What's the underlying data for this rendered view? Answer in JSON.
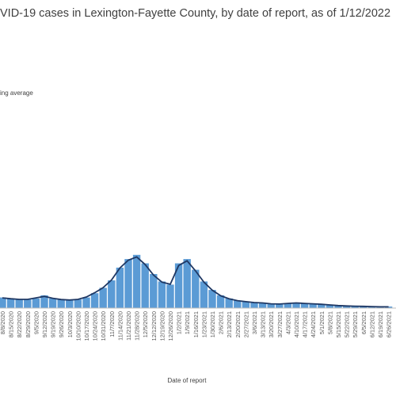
{
  "chart_data": {
    "type": "bar",
    "title": "VID-19 cases in Lexington-Fayette County, by date of report, as of 1/12/2022",
    "xlabel": "Date of report",
    "legend": {
      "line_label": "ing average",
      "position": "top-left"
    },
    "colors": {
      "bars": "#5b9bd5",
      "line": "#1f3864",
      "axis": "#bfbfbf"
    },
    "ylim": [
      0,
      1000
    ],
    "x_ticks": [
      "8/8/2020",
      "8/15/2020",
      "8/22/2020",
      "8/29/2020",
      "9/5/2020",
      "9/12/2020",
      "9/19/2020",
      "9/26/2020",
      "10/3/2020",
      "10/10/2020",
      "10/17/2020",
      "10/24/2020",
      "10/31/2020",
      "11/7/2020",
      "11/14/2020",
      "11/21/2020",
      "11/28/2020",
      "12/5/2020",
      "12/12/2020",
      "12/19/2020",
      "12/26/2020",
      "1/2/2021",
      "1/9/2021",
      "1/16/2021",
      "1/23/2021",
      "1/30/2021",
      "2/6/2021",
      "2/13/2021",
      "2/20/2021",
      "2/27/2021",
      "3/6/2021",
      "3/13/2021",
      "3/20/2021",
      "3/27/2021",
      "4/3/2021",
      "4/10/2021",
      "4/17/2021",
      "4/24/2021",
      "5/1/2021",
      "5/8/2021",
      "5/15/2021",
      "5/22/2021",
      "5/29/2021",
      "6/5/2021",
      "6/12/2021",
      "6/19/2021",
      "6/26/2021"
    ],
    "weekly_values": [
      50,
      45,
      42,
      40,
      45,
      60,
      45,
      40,
      38,
      40,
      50,
      70,
      95,
      130,
      190,
      230,
      250,
      210,
      160,
      125,
      110,
      210,
      230,
      180,
      125,
      85,
      60,
      45,
      35,
      30,
      25,
      25,
      20,
      18,
      22,
      25,
      22,
      20,
      18,
      15,
      12,
      10,
      10,
      8,
      7,
      6,
      7
    ],
    "moving_average": [
      48,
      44,
      41,
      41,
      48,
      55,
      46,
      40,
      38,
      41,
      52,
      72,
      96,
      132,
      188,
      225,
      240,
      205,
      155,
      122,
      112,
      200,
      222,
      175,
      122,
      84,
      58,
      44,
      35,
      30,
      26,
      24,
      20,
      19,
      22,
      24,
      22,
      20,
      18,
      15,
      12,
      10,
      9,
      8,
      7,
      6,
      6
    ]
  }
}
